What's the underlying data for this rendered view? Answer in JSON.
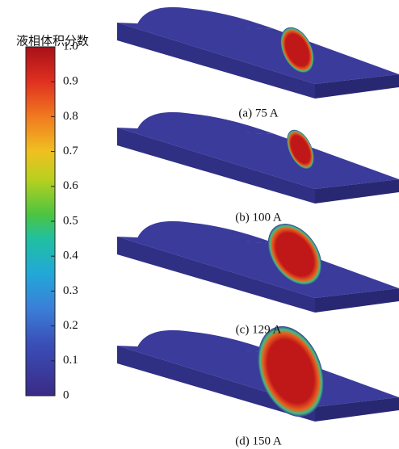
{
  "colorbar": {
    "title": "液相体积分数",
    "lim": [
      0,
      1
    ],
    "ticks": [
      0,
      0.1,
      0.2,
      0.3,
      0.4,
      0.5,
      0.6,
      0.7,
      0.8,
      0.9,
      {
        "value": 1,
        "label": "1.0"
      }
    ]
  },
  "panels": [
    {
      "caption": "(a) 75 A"
    },
    {
      "caption": "(b) 100 A"
    },
    {
      "caption": "(c) 129 A"
    },
    {
      "caption": "(d) 150 A"
    }
  ]
}
